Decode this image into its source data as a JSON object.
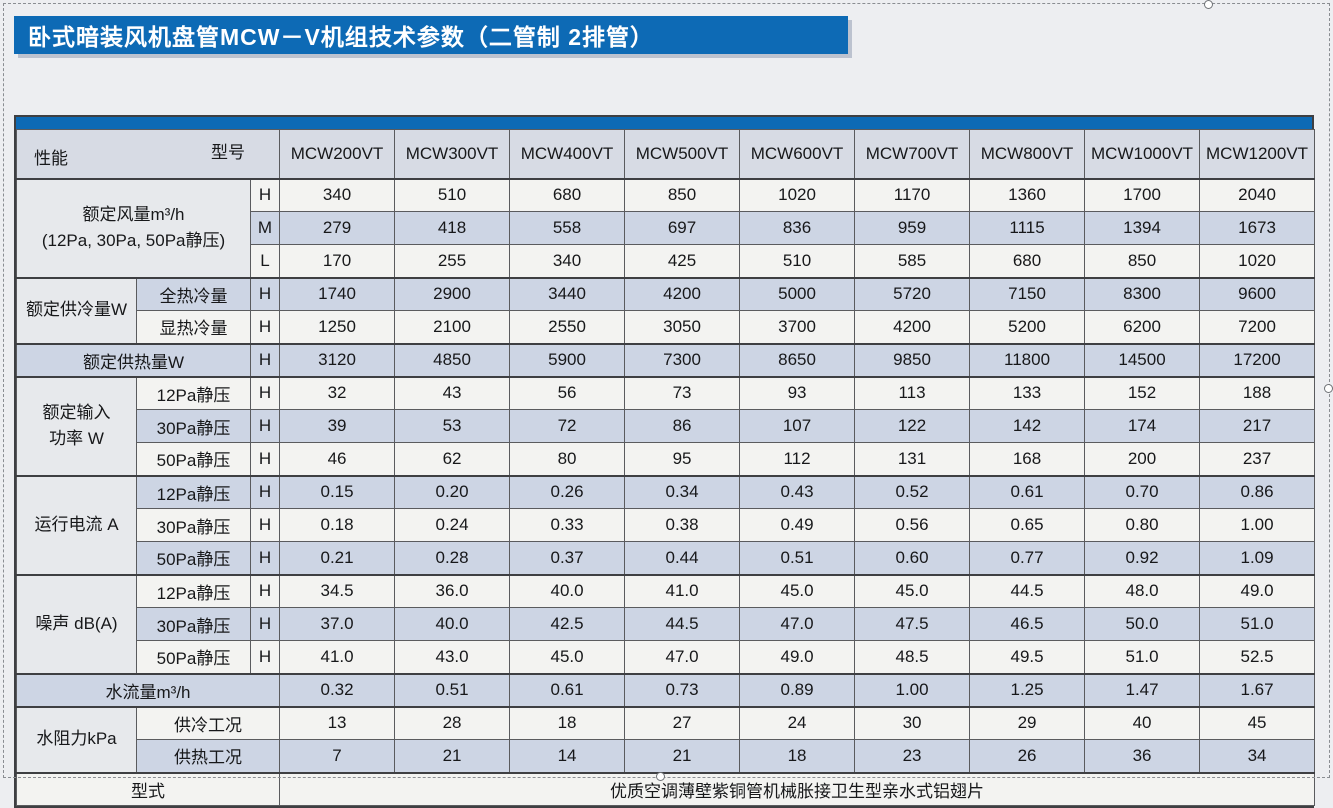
{
  "page": {
    "title": "卧式暗装风机盘管MCW－V机组技术参数（二管制 2排管）"
  },
  "colors": {
    "accent_blue": "#0d6ab5",
    "row_blue": "#cdd5e4",
    "row_white": "#f3f3f1",
    "header_bg": "#d7dbe4",
    "label_bg": "#e7e9ec",
    "border": "#5a5b5e"
  },
  "table": {
    "corner": {
      "bottom_left": "性能",
      "top_right": "型号"
    },
    "models": [
      "MCW200VT",
      "MCW300VT",
      "MCW400VT",
      "MCW500VT",
      "MCW600VT",
      "MCW700VT",
      "MCW800VT",
      "MCW1000VT",
      "MCW1200VT"
    ],
    "rows": [
      {
        "bg": "white",
        "section": true,
        "cells": [
          {
            "t": "额定风量m³/h\n(12Pa, 30Pa, 50Pa静压)",
            "rs": 3,
            "cs": 2,
            "cls": "label"
          },
          {
            "t": "H",
            "cls": "hml"
          },
          "340",
          "510",
          "680",
          "850",
          "1020",
          "1170",
          "1360",
          "1700",
          "2040"
        ]
      },
      {
        "bg": "blue",
        "cells": [
          {
            "t": "M",
            "cls": "hml"
          },
          "279",
          "418",
          "558",
          "697",
          "836",
          "959",
          "1115",
          "1394",
          "1673"
        ]
      },
      {
        "bg": "white",
        "cells": [
          {
            "t": "L",
            "cls": "hml"
          },
          "170",
          "255",
          "340",
          "425",
          "510",
          "585",
          "680",
          "850",
          "1020"
        ]
      },
      {
        "bg": "blue",
        "section": true,
        "cells": [
          {
            "t": "额定供冷量W",
            "rs": 2,
            "cls": "label"
          },
          {
            "t": "全热冷量",
            "cls": "sub"
          },
          {
            "t": "H",
            "cls": "hml"
          },
          "1740",
          "2900",
          "3440",
          "4200",
          "5000",
          "5720",
          "7150",
          "8300",
          "9600"
        ]
      },
      {
        "bg": "white",
        "cells": [
          {
            "t": "显热冷量",
            "cls": "sub"
          },
          {
            "t": "H",
            "cls": "hml"
          },
          "1250",
          "2100",
          "2550",
          "3050",
          "3700",
          "4200",
          "5200",
          "6200",
          "7200"
        ]
      },
      {
        "bg": "blue",
        "section": true,
        "cells": [
          {
            "t": "额定供热量W",
            "cs": 2,
            "cls": "flabel"
          },
          {
            "t": "H",
            "cls": "hml"
          },
          "3120",
          "4850",
          "5900",
          "7300",
          "8650",
          "9850",
          "11800",
          "14500",
          "17200"
        ]
      },
      {
        "bg": "white",
        "section": true,
        "cells": [
          {
            "t": "额定输入\n功率 W",
            "rs": 3,
            "cls": "label"
          },
          {
            "t": "12Pa静压",
            "cls": "sub"
          },
          {
            "t": "H",
            "cls": "hml"
          },
          "32",
          "43",
          "56",
          "73",
          "93",
          "113",
          "133",
          "152",
          "188"
        ]
      },
      {
        "bg": "blue",
        "cells": [
          {
            "t": "30Pa静压",
            "cls": "sub"
          },
          {
            "t": "H",
            "cls": "hml"
          },
          "39",
          "53",
          "72",
          "86",
          "107",
          "122",
          "142",
          "174",
          "217"
        ]
      },
      {
        "bg": "white",
        "cells": [
          {
            "t": "50Pa静压",
            "cls": "sub"
          },
          {
            "t": "H",
            "cls": "hml"
          },
          "46",
          "62",
          "80",
          "95",
          "112",
          "131",
          "168",
          "200",
          "237"
        ]
      },
      {
        "bg": "blue",
        "section": true,
        "cells": [
          {
            "t": "运行电流 A",
            "rs": 3,
            "cls": "label"
          },
          {
            "t": "12Pa静压",
            "cls": "sub"
          },
          {
            "t": "H",
            "cls": "hml"
          },
          "0.15",
          "0.20",
          "0.26",
          "0.34",
          "0.43",
          "0.52",
          "0.61",
          "0.70",
          "0.86"
        ]
      },
      {
        "bg": "white",
        "cells": [
          {
            "t": "30Pa静压",
            "cls": "sub"
          },
          {
            "t": "H",
            "cls": "hml"
          },
          "0.18",
          "0.24",
          "0.33",
          "0.38",
          "0.49",
          "0.56",
          "0.65",
          "0.80",
          "1.00"
        ]
      },
      {
        "bg": "blue",
        "cells": [
          {
            "t": "50Pa静压",
            "cls": "sub"
          },
          {
            "t": "H",
            "cls": "hml"
          },
          "0.21",
          "0.28",
          "0.37",
          "0.44",
          "0.51",
          "0.60",
          "0.77",
          "0.92",
          "1.09"
        ]
      },
      {
        "bg": "white",
        "section": true,
        "cells": [
          {
            "t": "噪声 dB(A)",
            "rs": 3,
            "cls": "label"
          },
          {
            "t": "12Pa静压",
            "cls": "sub"
          },
          {
            "t": "H",
            "cls": "hml"
          },
          "34.5",
          "36.0",
          "40.0",
          "41.0",
          "45.0",
          "45.0",
          "44.5",
          "48.0",
          "49.0"
        ]
      },
      {
        "bg": "blue",
        "cells": [
          {
            "t": "30Pa静压",
            "cls": "sub"
          },
          {
            "t": "H",
            "cls": "hml"
          },
          "37.0",
          "40.0",
          "42.5",
          "44.5",
          "47.0",
          "47.5",
          "46.5",
          "50.0",
          "51.0"
        ]
      },
      {
        "bg": "white",
        "cells": [
          {
            "t": "50Pa静压",
            "cls": "sub"
          },
          {
            "t": "H",
            "cls": "hml"
          },
          "41.0",
          "43.0",
          "45.0",
          "47.0",
          "49.0",
          "48.5",
          "49.5",
          "51.0",
          "52.5"
        ]
      },
      {
        "bg": "blue",
        "section": true,
        "cells": [
          {
            "t": "水流量m³/h",
            "cs": 3,
            "cls": "flabel"
          },
          "0.32",
          "0.51",
          "0.61",
          "0.73",
          "0.89",
          "1.00",
          "1.25",
          "1.47",
          "1.67"
        ]
      },
      {
        "bg": "white",
        "section": true,
        "cells": [
          {
            "t": "水阻力kPa",
            "rs": 2,
            "cls": "label"
          },
          {
            "t": "供冷工况",
            "cs": 2,
            "cls": "sub"
          },
          "13",
          "28",
          "18",
          "27",
          "24",
          "30",
          "29",
          "40",
          "45"
        ]
      },
      {
        "bg": "blue",
        "cells": [
          {
            "t": "供热工况",
            "cs": 2,
            "cls": "sub"
          },
          "7",
          "21",
          "14",
          "21",
          "18",
          "23",
          "26",
          "36",
          "34"
        ]
      },
      {
        "bg": "white",
        "section": true,
        "cells": [
          {
            "t": "型式",
            "cs": 3,
            "cls": "flabel"
          },
          {
            "t": "优质空调薄壁紫铜管机械胀接卫生型亲水式铝翅片",
            "cs": 9
          }
        ]
      }
    ]
  }
}
